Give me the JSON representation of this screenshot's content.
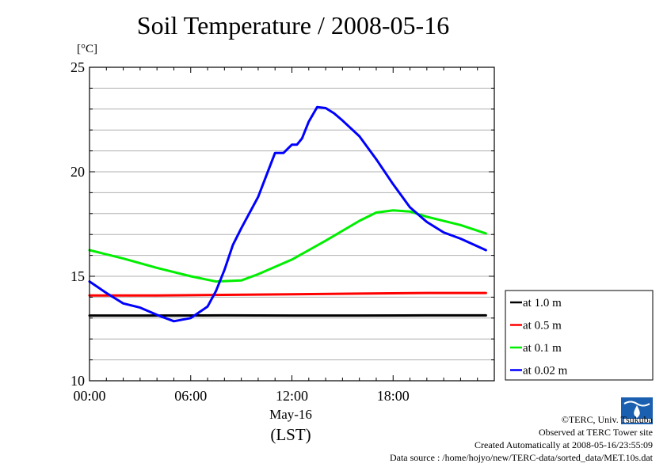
{
  "title": "Soil Temperature / 2008-05-16",
  "unit": "[°C]",
  "x_date_label": "May-16",
  "x_tz_label": "(LST)",
  "credits": {
    "copyright": "©TERC, Univ. Tsukuba",
    "observed": "Observed at TERC Tower site",
    "created": "Created Automatically at 2008-05-16/23:55:09",
    "source": "Data source : /home/hojyo/new/TERC-data/sorted_data/MET.10s.dat"
  },
  "chart_data": {
    "type": "line",
    "title": "Soil Temperature / 2008-05-16",
    "xlabel": "(LST)",
    "ylabel": "[°C]",
    "xlim": [
      0,
      24
    ],
    "ylim": [
      10,
      25
    ],
    "x_ticks": [
      0,
      6,
      12,
      18
    ],
    "x_tick_labels": [
      "00:00",
      "06:00",
      "12:00",
      "18:00"
    ],
    "y_ticks": [
      10,
      15,
      20,
      25
    ],
    "y_tick_labels": [
      "10",
      "15",
      "20",
      "25"
    ],
    "grid": true,
    "legend_placement": "right",
    "series": [
      {
        "name": "at 1.0 m",
        "color": "#000000",
        "x": [
          0,
          4,
          8,
          12,
          16,
          20,
          23.5
        ],
        "y": [
          13.12,
          13.12,
          13.13,
          13.12,
          13.12,
          13.13,
          13.13
        ]
      },
      {
        "name": "at 0.5 m",
        "color": "#ff0000",
        "x": [
          0,
          4,
          8,
          12,
          16,
          20,
          23.5
        ],
        "y": [
          14.08,
          14.08,
          14.11,
          14.14,
          14.17,
          14.2,
          14.2
        ]
      },
      {
        "name": "at 0.1 m",
        "color": "#00ee00",
        "x": [
          0,
          2,
          4,
          6,
          7.5,
          9,
          10,
          12,
          14,
          16,
          17,
          18,
          19,
          20,
          22,
          23.5
        ],
        "y": [
          16.25,
          15.85,
          15.4,
          15.0,
          14.75,
          14.8,
          15.1,
          15.8,
          16.7,
          17.65,
          18.05,
          18.15,
          18.1,
          17.85,
          17.45,
          17.05
        ]
      },
      {
        "name": "at 0.02 m",
        "color": "#0000ff",
        "x": [
          0,
          1,
          2,
          3,
          4,
          5,
          6,
          7,
          7.5,
          8,
          8.5,
          9,
          10,
          11,
          11.5,
          12,
          12.3,
          12.6,
          13,
          13.5,
          14,
          14.5,
          15,
          16,
          17,
          18,
          19,
          20,
          21,
          22,
          23.5
        ],
        "y": [
          14.75,
          14.2,
          13.7,
          13.5,
          13.15,
          12.85,
          13.0,
          13.55,
          14.3,
          15.3,
          16.5,
          17.3,
          18.8,
          20.9,
          20.9,
          21.3,
          21.3,
          21.6,
          22.4,
          23.1,
          23.05,
          22.8,
          22.45,
          21.7,
          20.6,
          19.4,
          18.3,
          17.6,
          17.1,
          16.8,
          16.25
        ]
      }
    ]
  }
}
